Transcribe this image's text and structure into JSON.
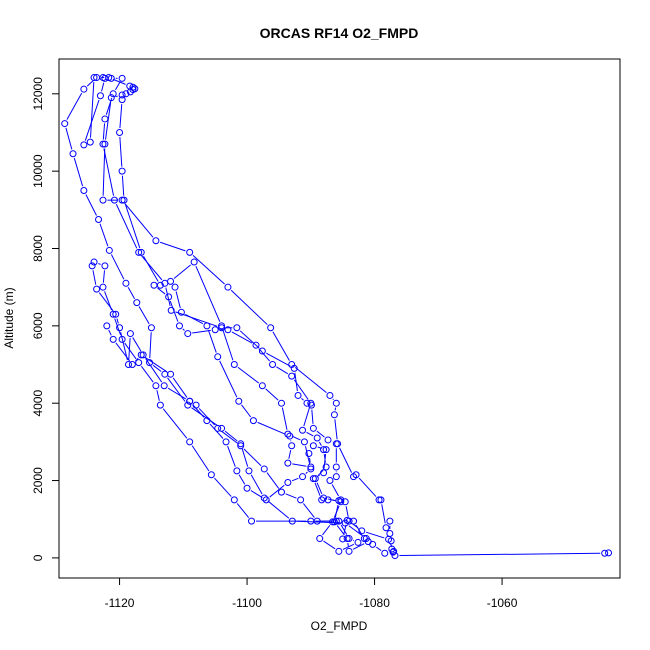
{
  "chart_data": {
    "type": "line",
    "title": "ORCAS RF14 O2_FMPD",
    "xlabel": "O2_FMPD",
    "ylabel": "Altitude (m)",
    "xlim": [
      -1129.5,
      -1041.5
    ],
    "ylim": [
      -520,
      12900
    ],
    "xticks": [
      -1120,
      -1100,
      -1080,
      -1060
    ],
    "xtick_labels": [
      "-1120",
      "-1100",
      "-1080",
      "-1060"
    ],
    "yticks": [
      0,
      2000,
      4000,
      6000,
      8000,
      10000,
      12000
    ],
    "ytick_labels": [
      "0",
      "2000",
      "4000",
      "6000",
      "8000",
      "10000",
      "12000"
    ],
    "grid": false,
    "legend": "none",
    "series": [
      {
        "color": "#0000ff",
        "marker": "open-circle",
        "points": [
          [
            -1043.3,
            130
          ],
          [
            -1043.9,
            120
          ],
          [
            -1076.8,
            60
          ],
          [
            -1077.1,
            150
          ],
          [
            -1077.3,
            230
          ],
          [
            -1077.4,
            440
          ],
          [
            -1077.6,
            630
          ],
          [
            -1077.6,
            950
          ],
          [
            -1078.2,
            780
          ],
          [
            -1079.0,
            1500
          ],
          [
            -1079.3,
            1500
          ],
          [
            -1082.9,
            2150
          ],
          [
            -1083.3,
            2100
          ],
          [
            -1085.8,
            2950
          ],
          [
            -1086.3,
            3700
          ],
          [
            -1086.0,
            4000
          ],
          [
            -1087.0,
            4200
          ],
          [
            -1093.0,
            5000
          ],
          [
            -1096.3,
            5950
          ],
          [
            -1103.0,
            7000
          ],
          [
            -1109.0,
            7900
          ],
          [
            -1114.3,
            8200
          ],
          [
            -1119.6,
            9250
          ],
          [
            -1122.6,
            9250
          ],
          [
            -1122.3,
            10700
          ],
          [
            -1121.3,
            11900
          ],
          [
            -1119.6,
            11970
          ],
          [
            -1119.0,
            12000
          ],
          [
            -1118.3,
            12050
          ],
          [
            -1117.9,
            12110
          ],
          [
            -1117.6,
            12130
          ],
          [
            -1117.9,
            12170
          ],
          [
            -1118.4,
            12200
          ],
          [
            -1121.7,
            12420
          ],
          [
            -1123.6,
            12420
          ],
          [
            -1125.6,
            12120
          ],
          [
            -1128.6,
            11230
          ],
          [
            -1127.3,
            10450
          ],
          [
            -1125.6,
            9500
          ],
          [
            -1123.3,
            8750
          ],
          [
            -1121.6,
            7950
          ],
          [
            -1119.0,
            7100
          ],
          [
            -1117.3,
            6600
          ],
          [
            -1115.0,
            5950
          ],
          [
            -1115.3,
            5050
          ],
          [
            -1112.9,
            4750
          ],
          [
            -1109.3,
            3950
          ],
          [
            -1104.0,
            3350
          ],
          [
            -1101.0,
            2950
          ],
          [
            -1099.7,
            2250
          ],
          [
            -1097.3,
            1550
          ],
          [
            -1092.9,
            950
          ],
          [
            -1084.6,
            900
          ],
          [
            -1081.3,
            500
          ],
          [
            -1080.3,
            350
          ],
          [
            -1078.4,
            120
          ]
        ]
      },
      {
        "color": "#0000ff",
        "marker": "open-circle",
        "points": [
          [
            -1077.0,
            170
          ],
          [
            -1077.8,
            480
          ],
          [
            -1082.0,
            700
          ],
          [
            -1084.0,
            950
          ],
          [
            -1084.6,
            1450
          ],
          [
            -1085.3,
            1500
          ],
          [
            -1087.0,
            2000
          ],
          [
            -1086.0,
            2100
          ],
          [
            -1086.0,
            2350
          ],
          [
            -1086.0,
            2950
          ],
          [
            -1087.3,
            3050
          ],
          [
            -1089.6,
            3350
          ],
          [
            -1089.9,
            3950
          ],
          [
            -1090.6,
            4000
          ],
          [
            -1092.0,
            4200
          ],
          [
            -1092.6,
            4900
          ],
          [
            -1097.6,
            5350
          ],
          [
            -1101.6,
            5950
          ],
          [
            -1104.0,
            5950
          ],
          [
            -1111.9,
            6400
          ],
          [
            -1112.9,
            7100
          ],
          [
            -1117.0,
            7900
          ],
          [
            -1120.8,
            9250
          ],
          [
            -1122.6,
            10700
          ],
          [
            -1122.3,
            11350
          ],
          [
            -1121.0,
            12000
          ],
          [
            -1119.6,
            12400
          ],
          [
            -1121.3,
            12400
          ],
          [
            -1122.6,
            12420
          ],
          [
            -1124.0,
            12420
          ],
          [
            -1124.6,
            10750
          ],
          [
            -1125.6,
            10680
          ],
          [
            -1123.0,
            11950
          ],
          [
            -1122.3,
            12400
          ]
        ]
      },
      {
        "color": "#0000ff",
        "marker": "open-circle",
        "points": [
          [
            -1085.0,
            490
          ],
          [
            -1084.3,
            970
          ],
          [
            -1083.3,
            950
          ],
          [
            -1081.6,
            500
          ],
          [
            -1081.0,
            420
          ],
          [
            -1084.0,
            170
          ],
          [
            -1084.3,
            500
          ],
          [
            -1086.3,
            930
          ],
          [
            -1085.6,
            1480
          ],
          [
            -1087.3,
            1500
          ],
          [
            -1088.3,
            1500
          ],
          [
            -1089.6,
            2050
          ],
          [
            -1088.0,
            2200
          ],
          [
            -1087.6,
            2800
          ],
          [
            -1089.6,
            2900
          ],
          [
            -1090.3,
            2700
          ],
          [
            -1090.0,
            2350
          ],
          [
            -1093.6,
            2450
          ],
          [
            -1093.0,
            2900
          ],
          [
            -1093.3,
            3150
          ],
          [
            -1099.0,
            3550
          ],
          [
            -1101.3,
            4050
          ],
          [
            -1104.6,
            5200
          ],
          [
            -1106.3,
            6000
          ],
          [
            -1110.3,
            6350
          ],
          [
            -1111.3,
            7000
          ],
          [
            -1112.0,
            7150
          ],
          [
            -1108.3,
            7650
          ],
          [
            -1104.0,
            6000
          ],
          [
            -1102.0,
            5000
          ],
          [
            -1097.6,
            4450
          ],
          [
            -1094.6,
            4000
          ],
          [
            -1093.6,
            3200
          ],
          [
            -1091.0,
            3000
          ],
          [
            -1090.0,
            2300
          ],
          [
            -1091.3,
            2100
          ],
          [
            -1093.6,
            1950
          ],
          [
            -1097.0,
            1500
          ],
          [
            -1100.0,
            1800
          ],
          [
            -1101.6,
            2250
          ],
          [
            -1103.3,
            3000
          ],
          [
            -1106.3,
            3550
          ],
          [
            -1109.0,
            4050
          ],
          [
            -1113.0,
            4450
          ],
          [
            -1116.3,
            5250
          ],
          [
            -1118.3,
            5800
          ],
          [
            -1118.6,
            5000
          ],
          [
            -1120.0,
            5950
          ],
          [
            -1120.6,
            6300
          ],
          [
            -1123.6,
            6950
          ],
          [
            -1124.3,
            7550
          ],
          [
            -1124.0,
            7650
          ],
          [
            -1122.3,
            7550
          ],
          [
            -1122.6,
            7000
          ],
          [
            -1121.0,
            6300
          ],
          [
            -1119.6,
            5650
          ],
          [
            -1117.0,
            5050
          ],
          [
            -1114.3,
            4450
          ],
          [
            -1113.6,
            3950
          ],
          [
            -1109.0,
            3000
          ],
          [
            -1105.6,
            2150
          ],
          [
            -1102.0,
            1500
          ],
          [
            -1099.3,
            950
          ],
          [
            -1090.0,
            950
          ],
          [
            -1086.0,
            950
          ]
        ]
      },
      {
        "color": "#0000ff",
        "marker": "open-circle",
        "points": [
          [
            -1122.0,
            6000
          ],
          [
            -1121.0,
            5650
          ],
          [
            -1118.0,
            5000
          ],
          [
            -1116.6,
            5250
          ],
          [
            -1112.0,
            4750
          ],
          [
            -1109.0,
            4050
          ],
          [
            -1108.0,
            3950
          ],
          [
            -1104.6,
            3350
          ],
          [
            -1101.0,
            2900
          ],
          [
            -1097.3,
            2300
          ],
          [
            -1094.6,
            1700
          ],
          [
            -1091.6,
            1500
          ],
          [
            -1089.0,
            950
          ],
          [
            -1085.6,
            950
          ],
          [
            -1084.0,
            500
          ],
          [
            -1082.6,
            400
          ],
          [
            -1085.6,
            170
          ],
          [
            -1088.6,
            500
          ],
          [
            -1086.6,
            930
          ],
          [
            -1085.3,
            1450
          ],
          [
            -1088.0,
            1550
          ],
          [
            -1089.3,
            2050
          ],
          [
            -1087.6,
            2350
          ],
          [
            -1088.0,
            2800
          ],
          [
            -1089.0,
            3100
          ],
          [
            -1091.3,
            3300
          ],
          [
            -1090.0,
            4000
          ],
          [
            -1093.0,
            4700
          ],
          [
            -1096.0,
            5000
          ],
          [
            -1098.6,
            5500
          ],
          [
            -1103.0,
            5900
          ],
          [
            -1105.0,
            5900
          ],
          [
            -1109.3,
            5800
          ],
          [
            -1110.6,
            6000
          ],
          [
            -1112.3,
            6750
          ],
          [
            -1114.6,
            7050
          ],
          [
            -1113.6,
            7050
          ],
          [
            -1116.6,
            7900
          ],
          [
            -1119.3,
            9250
          ],
          [
            -1119.6,
            10000
          ],
          [
            -1120.0,
            11000
          ],
          [
            -1119.6,
            11850
          ]
        ]
      }
    ]
  }
}
